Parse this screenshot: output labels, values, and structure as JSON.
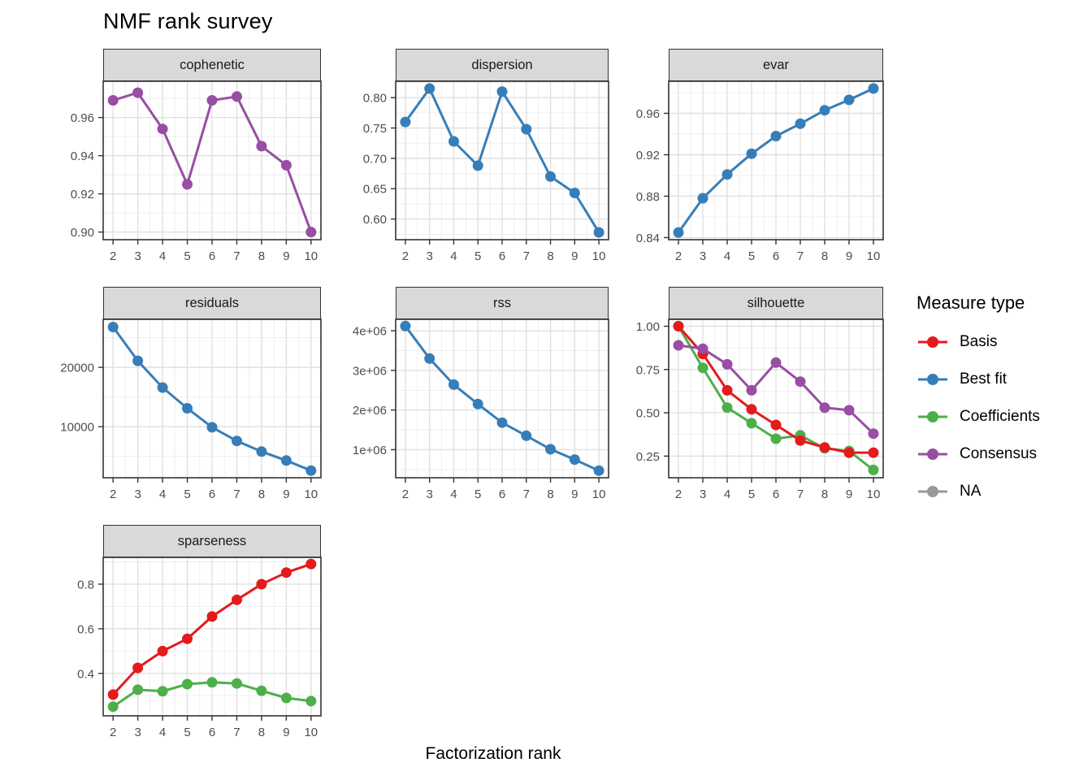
{
  "title": "NMF rank survey",
  "xlabel": "Factorization rank",
  "colors": {
    "Basis": "#E41A1C",
    "Best fit": "#377EB8",
    "Coefficients": "#4DAF4A",
    "Consensus": "#984EA3",
    "NA": "#999999"
  },
  "legend": {
    "title": "Measure type",
    "position": "right",
    "items": [
      {
        "label": "Basis",
        "color": "#E41A1C"
      },
      {
        "label": "Best fit",
        "color": "#377EB8"
      },
      {
        "label": "Coefficients",
        "color": "#4DAF4A"
      },
      {
        "label": "Consensus",
        "color": "#984EA3"
      },
      {
        "label": "NA",
        "color": "#999999"
      }
    ]
  },
  "chart_data": [
    {
      "type": "line",
      "facet": "cophenetic",
      "row": 0,
      "col": 0,
      "x": [
        2,
        3,
        4,
        5,
        6,
        7,
        8,
        9,
        10
      ],
      "xticks": [
        2,
        3,
        4,
        5,
        6,
        7,
        8,
        9,
        10
      ],
      "xlim": [
        1.6,
        10.4
      ],
      "yticks": [
        0.9,
        0.92,
        0.94,
        0.96
      ],
      "ytick_labels": [
        "0.90",
        "0.92",
        "0.94",
        "0.96"
      ],
      "ylim": [
        0.896,
        0.979
      ],
      "grid": true,
      "series": [
        {
          "name": "Consensus",
          "values": [
            0.969,
            0.973,
            0.954,
            0.925,
            0.969,
            0.971,
            0.945,
            0.935,
            0.9
          ]
        }
      ]
    },
    {
      "type": "line",
      "facet": "dispersion",
      "row": 0,
      "col": 1,
      "x": [
        2,
        3,
        4,
        5,
        6,
        7,
        8,
        9,
        10
      ],
      "xticks": [
        2,
        3,
        4,
        5,
        6,
        7,
        8,
        9,
        10
      ],
      "xlim": [
        1.6,
        10.4
      ],
      "yticks": [
        0.6,
        0.65,
        0.7,
        0.75,
        0.8
      ],
      "ytick_labels": [
        "0.60",
        "0.65",
        "0.70",
        "0.75",
        "0.80"
      ],
      "ylim": [
        0.566,
        0.827
      ],
      "grid": true,
      "series": [
        {
          "name": "Best fit",
          "values": [
            0.76,
            0.815,
            0.728,
            0.688,
            0.81,
            0.748,
            0.67,
            0.643,
            0.578
          ]
        }
      ]
    },
    {
      "type": "line",
      "facet": "evar",
      "row": 0,
      "col": 2,
      "x": [
        2,
        3,
        4,
        5,
        6,
        7,
        8,
        9,
        10
      ],
      "xticks": [
        2,
        3,
        4,
        5,
        6,
        7,
        8,
        9,
        10
      ],
      "xlim": [
        1.6,
        10.4
      ],
      "yticks": [
        0.84,
        0.88,
        0.92,
        0.96
      ],
      "ytick_labels": [
        "0.84",
        "0.88",
        "0.92",
        "0.96"
      ],
      "ylim": [
        0.838,
        0.991
      ],
      "grid": true,
      "series": [
        {
          "name": "Best fit",
          "values": [
            0.845,
            0.878,
            0.901,
            0.921,
            0.938,
            0.95,
            0.963,
            0.973,
            0.984
          ]
        }
      ]
    },
    {
      "type": "line",
      "facet": "residuals",
      "row": 1,
      "col": 0,
      "x": [
        2,
        3,
        4,
        5,
        6,
        7,
        8,
        9,
        10
      ],
      "xticks": [
        2,
        3,
        4,
        5,
        6,
        7,
        8,
        9,
        10
      ],
      "xlim": [
        1.6,
        10.4
      ],
      "yticks": [
        10000,
        20000
      ],
      "ytick_labels": [
        "10000",
        "20000"
      ],
      "ylim": [
        1390,
        28100
      ],
      "grid": true,
      "series": [
        {
          "name": "Best fit",
          "values": [
            26800,
            21100,
            16600,
            13100,
            9900,
            7600,
            5800,
            4300,
            2600
          ]
        }
      ]
    },
    {
      "type": "line",
      "facet": "rss",
      "row": 1,
      "col": 1,
      "x": [
        2,
        3,
        4,
        5,
        6,
        7,
        8,
        9,
        10
      ],
      "xticks": [
        2,
        3,
        4,
        5,
        6,
        7,
        8,
        9,
        10
      ],
      "xlim": [
        1.6,
        10.4
      ],
      "yticks": [
        1000000,
        2000000,
        3000000,
        4000000
      ],
      "ytick_labels": [
        "1e+06",
        "2e+06",
        "3e+06",
        "4e+06"
      ],
      "ylim": [
        290000,
        4290000
      ],
      "grid": true,
      "series": [
        {
          "name": "Best fit",
          "values": [
            4120000,
            3300000,
            2640000,
            2150000,
            1680000,
            1350000,
            1010000,
            750000,
            470000
          ]
        }
      ]
    },
    {
      "type": "line",
      "facet": "silhouette",
      "row": 1,
      "col": 2,
      "x": [
        2,
        3,
        4,
        5,
        6,
        7,
        8,
        9,
        10
      ],
      "xticks": [
        2,
        3,
        4,
        5,
        6,
        7,
        8,
        9,
        10
      ],
      "xlim": [
        1.6,
        10.4
      ],
      "yticks": [
        0.25,
        0.5,
        0.75,
        1.0
      ],
      "ytick_labels": [
        "0.25",
        "0.50",
        "0.75",
        "1.00"
      ],
      "ylim": [
        0.125,
        1.04
      ],
      "grid": true,
      "series": [
        {
          "name": "Coefficients",
          "values": [
            1.0,
            0.76,
            0.53,
            0.44,
            0.35,
            0.37,
            0.295,
            0.28,
            0.17
          ]
        },
        {
          "name": "Basis",
          "values": [
            1.0,
            0.84,
            0.63,
            0.52,
            0.43,
            0.34,
            0.3,
            0.27,
            0.27
          ]
        },
        {
          "name": "Consensus",
          "values": [
            0.89,
            0.87,
            0.78,
            0.63,
            0.79,
            0.68,
            0.53,
            0.515,
            0.38
          ]
        }
      ]
    },
    {
      "type": "line",
      "facet": "sparseness",
      "row": 2,
      "col": 0,
      "x": [
        2,
        3,
        4,
        5,
        6,
        7,
        8,
        9,
        10
      ],
      "xticks": [
        2,
        3,
        4,
        5,
        6,
        7,
        8,
        9,
        10
      ],
      "xlim": [
        1.6,
        10.4
      ],
      "yticks": [
        0.4,
        0.6,
        0.8
      ],
      "ytick_labels": [
        "0.4",
        "0.6",
        "0.8"
      ],
      "ylim": [
        0.21,
        0.92
      ],
      "grid": true,
      "series": [
        {
          "name": "Basis",
          "values": [
            0.305,
            0.425,
            0.5,
            0.555,
            0.655,
            0.73,
            0.8,
            0.852,
            0.89
          ]
        },
        {
          "name": "Coefficients",
          "values": [
            0.251,
            0.327,
            0.32,
            0.352,
            0.36,
            0.355,
            0.322,
            0.29,
            0.276
          ]
        }
      ]
    }
  ]
}
